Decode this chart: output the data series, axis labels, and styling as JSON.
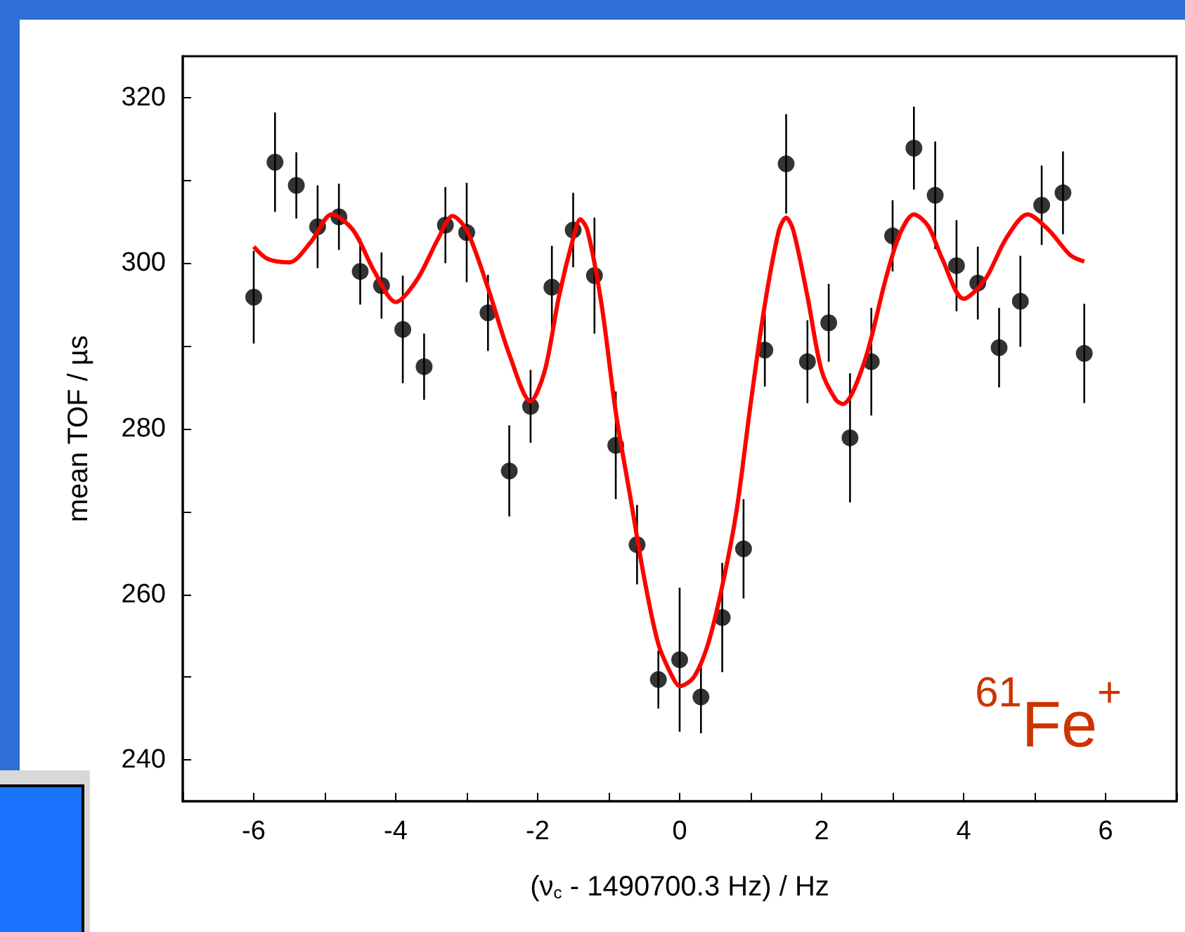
{
  "chart_data": {
    "type": "scatter",
    "xlabel": "(ν$_{c}$ - 1490700.3 Hz) / Hz",
    "ylabel": "mean TOF / µs",
    "xlim": [
      -7,
      7
    ],
    "xticks": [
      {
        "value": -7,
        "label": null
      },
      -6,
      {
        "value": -5,
        "label": null
      },
      -4,
      {
        "value": -3,
        "label": null
      },
      -2,
      {
        "value": -1,
        "label": null
      },
      0,
      {
        "value": 1,
        "label": null
      },
      2,
      {
        "value": 3,
        "label": null
      },
      4,
      {
        "value": 5,
        "label": null
      },
      6,
      {
        "value": 7,
        "label": null
      }
    ],
    "ylim": [
      235,
      325
    ],
    "yticks": [
      240,
      {
        "value": 250,
        "label": null
      },
      260,
      {
        "value": 270,
        "label": null
      },
      280,
      {
        "value": 290,
        "label": null
      },
      300,
      {
        "value": 310,
        "label": null
      },
      320
    ],
    "marker": "circle",
    "annotations": [
      "$^{61}$Fe$^{+}$"
    ],
    "series": [
      {
        "type": "scatter",
        "color": "#000000",
        "x": [
          -6,
          -5.7,
          -5.4,
          -5.1,
          -4.8,
          -4.5,
          -4.2,
          -3.9,
          -3.6,
          -3.3,
          -3,
          -2.7,
          -2.4,
          -2.1,
          -1.8,
          -1.5,
          -1.2,
          -0.9,
          -0.6,
          -0.3,
          0,
          0.3,
          0.6,
          0.9,
          1.2,
          1.5,
          1.8,
          2.1,
          2.4,
          2.7,
          3,
          3.3,
          3.6,
          3.9,
          4.2,
          4.5,
          4.8,
          5.1,
          5.4,
          5.7
        ],
        "values": [
          295.9,
          312.2,
          309.4,
          304.4,
          305.6,
          299,
          297.3,
          292,
          287.5,
          304.6,
          303.7,
          294,
          274.9,
          282.7,
          297.1,
          304,
          298.5,
          278,
          266,
          249.7,
          252.1,
          247.6,
          257.2,
          265.5,
          289.5,
          312,
          288.1,
          292.8,
          278.9,
          288.1,
          303.3,
          313.9,
          308.2,
          299.7,
          297.6,
          289.8,
          295.4,
          307,
          308.5,
          289.1
        ],
        "errors": [
          5.6,
          6,
          4,
          5,
          4,
          4,
          4,
          6.5,
          4,
          4.6,
          6,
          4.6,
          5.5,
          4.4,
          5,
          4.5,
          7,
          6.5,
          4.8,
          3.5,
          8.7,
          4.4,
          6.6,
          6,
          4.4,
          6,
          5,
          4.7,
          7.8,
          6.5,
          4.3,
          5,
          6.5,
          5.5,
          4.4,
          4.8,
          5.5,
          4.8,
          5,
          6
        ]
      },
      {
        "type": "line",
        "color": "#ff0000",
        "marker": "none",
        "x": [
          -6,
          -5.8,
          -5.5,
          -5.2,
          -4.9,
          -4.6,
          -4.3,
          -4,
          -3.7,
          -3.4,
          -3.2,
          -3,
          -2.7,
          -2.4,
          -2.1,
          -1.9,
          -1.7,
          -1.5,
          -1.4,
          -1.3,
          -1.1,
          -0.9,
          -0.7,
          -0.5,
          -0.3,
          -0.1,
          0,
          0.2,
          0.4,
          0.6,
          0.8,
          1,
          1.2,
          1.4,
          1.5,
          1.6,
          1.8,
          2,
          2.2,
          2.3,
          2.6,
          2.9,
          3.1,
          3.3,
          3.5,
          3.7,
          4,
          4.3,
          4.6,
          4.9,
          5.2,
          5.5,
          5.7
        ],
        "values": [
          302,
          300.5,
          300.1,
          302.5,
          305.9,
          304,
          299,
          295.3,
          298,
          303,
          305.7,
          304,
          297,
          289,
          283.3,
          287,
          296,
          303,
          305.3,
          304,
          295,
          282,
          272,
          262,
          254,
          250,
          248.9,
          250,
          254,
          261,
          270,
          283,
          295,
          304,
          305.5,
          304,
          296,
          287,
          283.5,
          283,
          288,
          298,
          303.5,
          305.9,
          304.5,
          300.5,
          295.7,
          298,
          303,
          305.9,
          304,
          301,
          300.2
        ]
      }
    ]
  }
}
